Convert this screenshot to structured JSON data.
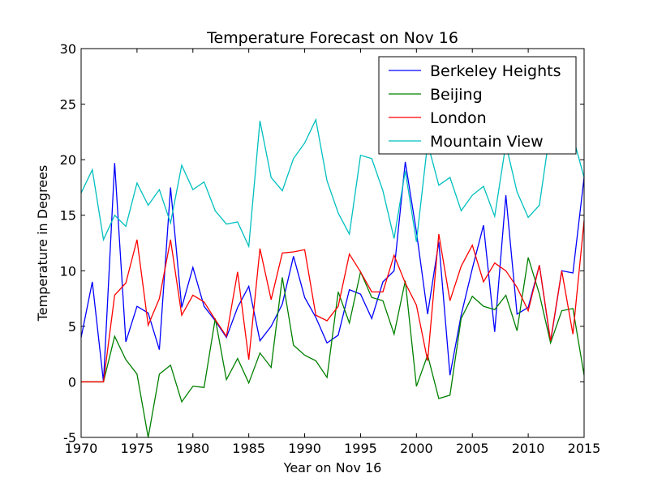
{
  "chart_data": {
    "type": "line",
    "title": "Temperature Forecast on Nov 16",
    "xlabel": "Year on Nov 16",
    "ylabel": "Temperature in Degrees",
    "xlim": [
      1970,
      2015
    ],
    "ylim": [
      -5,
      30
    ],
    "xticks": [
      1970,
      1975,
      1980,
      1985,
      1990,
      1995,
      2000,
      2005,
      2010,
      2015
    ],
    "yticks": [
      -5,
      0,
      5,
      10,
      15,
      20,
      25,
      30
    ],
    "legend_position": "top-right",
    "x": [
      1970,
      1971,
      1972,
      1973,
      1974,
      1975,
      1976,
      1977,
      1978,
      1979,
      1980,
      1981,
      1982,
      1983,
      1984,
      1985,
      1986,
      1987,
      1988,
      1989,
      1990,
      1991,
      1992,
      1993,
      1994,
      1995,
      1996,
      1997,
      1998,
      1999,
      2000,
      2001,
      2002,
      2003,
      2004,
      2005,
      2006,
      2007,
      2008,
      2009,
      2010,
      2011,
      2012,
      2013,
      2014,
      2015
    ],
    "series": [
      {
        "name": "Berkeley Heights",
        "color": "#0000ff",
        "values": [
          4.0,
          9.0,
          0.0,
          19.7,
          3.6,
          6.8,
          6.2,
          2.9,
          17.5,
          6.7,
          10.3,
          6.8,
          5.5,
          4.0,
          6.7,
          8.6,
          3.7,
          5.0,
          7.0,
          11.3,
          7.6,
          5.8,
          3.5,
          4.2,
          8.3,
          7.9,
          5.7,
          9.0,
          10.0,
          19.8,
          13.5,
          6.1,
          12.6,
          0.6,
          6.0,
          10.2,
          14.1,
          4.5,
          16.8,
          6.1,
          6.7,
          10.5,
          3.6,
          10.0,
          9.8,
          18.4
        ]
      },
      {
        "name": "Beijing",
        "color": "#008000",
        "values": [
          0.0,
          0.0,
          0.0,
          4.1,
          2.0,
          0.7,
          -5.0,
          0.7,
          1.5,
          -1.8,
          -0.4,
          -0.5,
          5.7,
          0.2,
          2.1,
          -0.1,
          2.6,
          1.3,
          9.4,
          3.3,
          2.4,
          1.9,
          0.4,
          8.1,
          5.3,
          9.9,
          7.6,
          7.3,
          4.3,
          9.1,
          -0.4,
          2.4,
          -1.5,
          -1.2,
          5.7,
          7.7,
          6.8,
          6.5,
          7.8,
          4.6,
          11.2,
          7.9,
          3.5,
          6.4,
          6.6,
          0.6
        ]
      },
      {
        "name": "London",
        "color": "#ff0000",
        "values": [
          0.0,
          0.0,
          0.0,
          7.8,
          8.9,
          12.8,
          5.1,
          7.5,
          12.8,
          6.0,
          7.8,
          7.2,
          5.6,
          4.1,
          9.9,
          2.0,
          12.0,
          7.4,
          11.6,
          11.7,
          11.9,
          6.0,
          5.5,
          6.8,
          11.5,
          9.9,
          8.1,
          8.1,
          11.4,
          8.9,
          6.9,
          1.9,
          13.3,
          7.3,
          10.4,
          12.3,
          9.0,
          10.7,
          10.0,
          8.5,
          6.4,
          10.5,
          3.7,
          10.0,
          4.3,
          14.5
        ]
      },
      {
        "name": "Mountain View",
        "color": "#00bfbf",
        "values": [
          17.0,
          19.1,
          12.8,
          15.0,
          14.0,
          17.9,
          15.9,
          17.3,
          14.3,
          19.5,
          17.3,
          18.0,
          15.4,
          14.2,
          14.4,
          12.2,
          23.5,
          18.4,
          17.2,
          20.1,
          21.5,
          23.6,
          18.1,
          15.2,
          13.3,
          20.4,
          20.1,
          17.2,
          12.9,
          19.0,
          12.6,
          21.5,
          17.7,
          18.4,
          15.4,
          16.8,
          17.6,
          14.9,
          21.4,
          17.1,
          14.8,
          15.9,
          22.9,
          21.1,
          22.1,
          18.4
        ]
      }
    ]
  }
}
